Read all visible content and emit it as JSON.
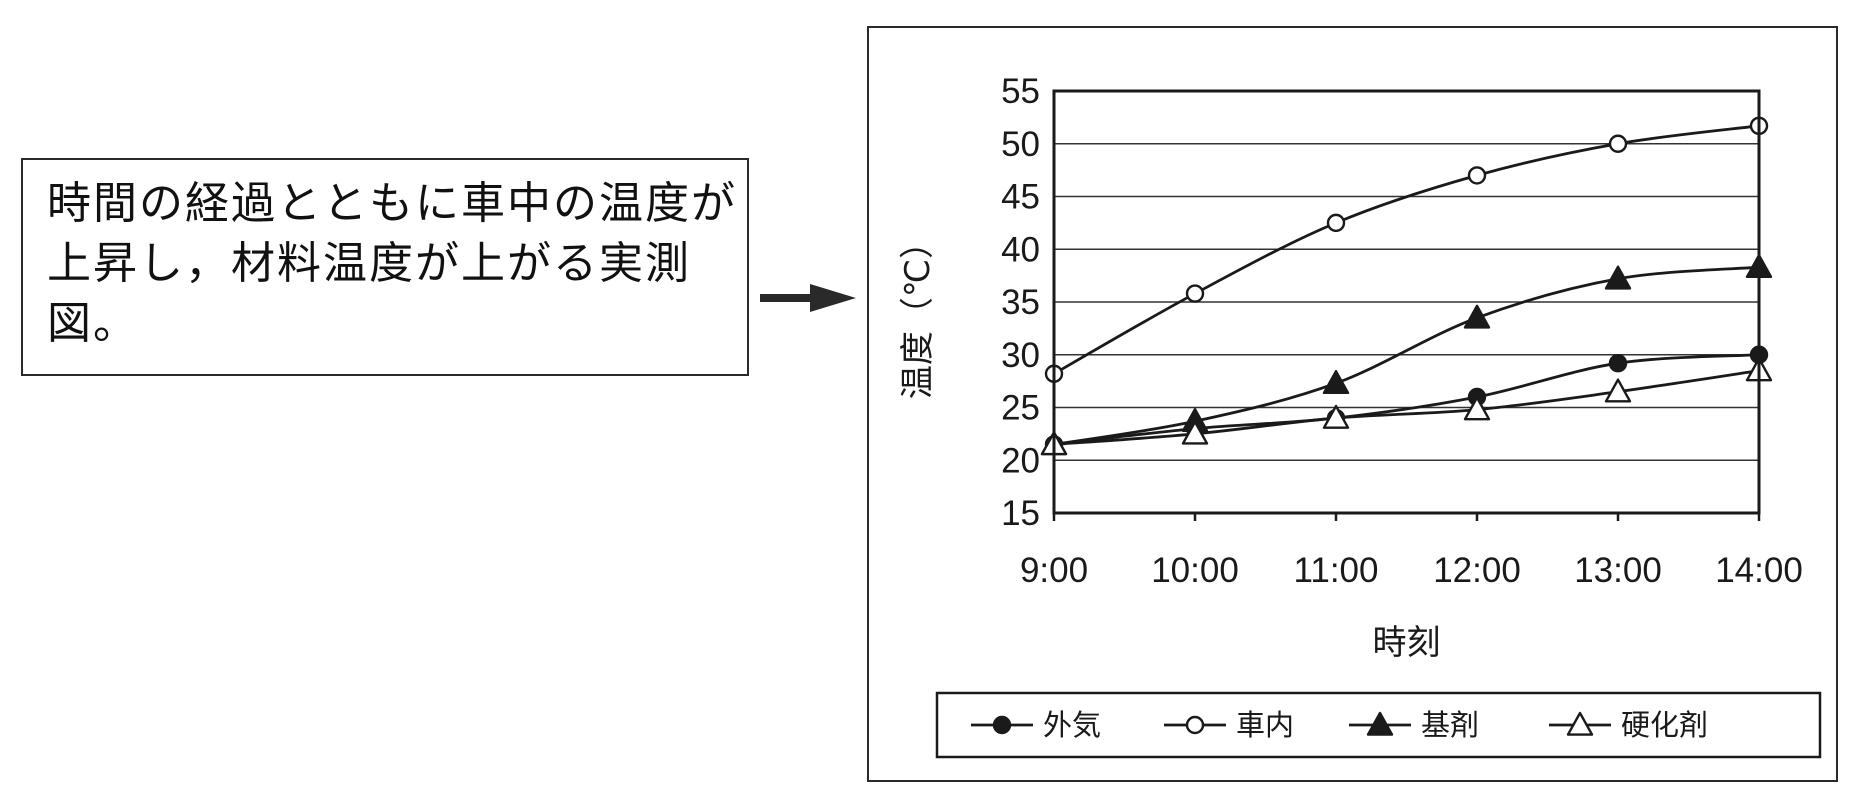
{
  "callout": {
    "text": "時間の経過とともに車中の温度が上昇し，材料温度が上がる実測図。"
  },
  "chart_data": {
    "type": "line",
    "title": "",
    "xlabel": "時刻",
    "ylabel": "温度（℃）",
    "categories": [
      "9:00",
      "10:00",
      "11:00",
      "12:00",
      "13:00",
      "14:00"
    ],
    "ylim": [
      15,
      55
    ],
    "yticks": [
      15,
      20,
      25,
      30,
      35,
      40,
      45,
      50,
      55
    ],
    "grid": true,
    "legend_position": "bottom",
    "series": [
      {
        "name": "外気",
        "marker": "filled-circle",
        "values": [
          21.5,
          23,
          24,
          26,
          29.2,
          30
        ]
      },
      {
        "name": "車内",
        "marker": "open-circle",
        "values": [
          28.2,
          35.8,
          42.5,
          47,
          50,
          51.7
        ]
      },
      {
        "name": "基剤",
        "marker": "filled-triangle",
        "values": [
          21.5,
          23.7,
          27.3,
          33.5,
          37.2,
          38.3
        ]
      },
      {
        "name": "硬化剤",
        "marker": "open-triangle",
        "values": [
          21.5,
          22.5,
          24,
          24.8,
          26.5,
          28.5
        ]
      }
    ]
  }
}
